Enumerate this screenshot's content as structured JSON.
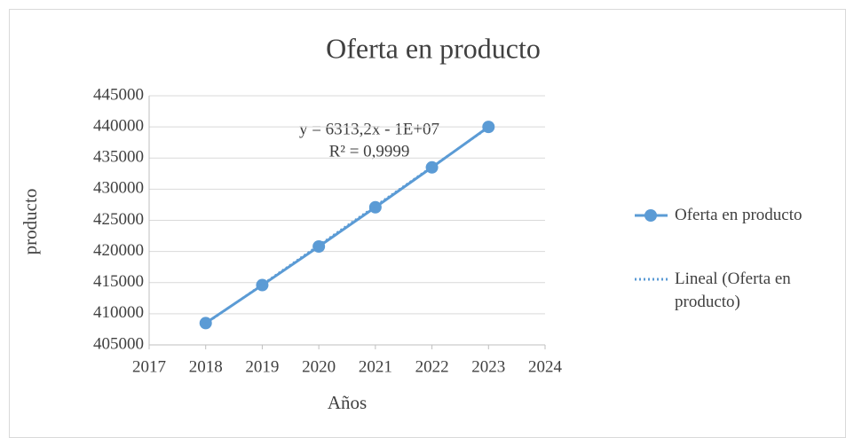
{
  "chart_data": {
    "type": "line",
    "title": "Oferta en producto",
    "xlabel": "Años",
    "ylabel": "producto",
    "x": [
      2018,
      2019,
      2020,
      2021,
      2022,
      2023
    ],
    "series": [
      {
        "name": "Oferta en producto",
        "color": "#5b9bd5",
        "values": [
          408500,
          414600,
          420800,
          427100,
          433500,
          440000
        ],
        "style": "solid",
        "markers": true
      },
      {
        "name": "Lineal (Oferta en producto)",
        "color": "#5b9bd5",
        "values": [
          408400,
          414700,
          421000,
          427300,
          433600,
          439900
        ],
        "style": "dotted",
        "markers": false
      }
    ],
    "annotations": [
      "y = 6313,2x - 1E+07",
      "R² = 0,9999"
    ],
    "xlim": [
      2017,
      2024
    ],
    "xticks": [
      2017,
      2018,
      2019,
      2020,
      2021,
      2022,
      2023,
      2024
    ],
    "ylim": [
      405000,
      445000
    ],
    "yticks": [
      405000,
      410000,
      415000,
      420000,
      425000,
      430000,
      435000,
      440000,
      445000
    ],
    "grid": true,
    "legend": "right"
  }
}
